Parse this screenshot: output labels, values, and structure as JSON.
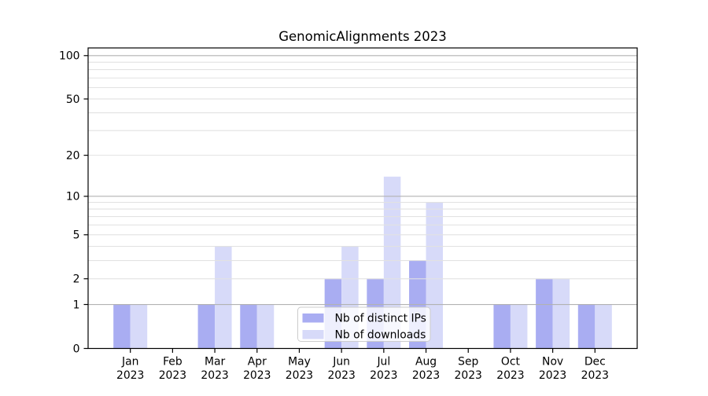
{
  "chart_data": {
    "type": "bar",
    "title": "GenomicAlignments 2023",
    "categories": [
      "Jan",
      "Feb",
      "Mar",
      "Apr",
      "May",
      "Jun",
      "Jul",
      "Aug",
      "Sep",
      "Oct",
      "Nov",
      "Dec"
    ],
    "year_label": "2023",
    "series": [
      {
        "name": "Nb of distinct IPs",
        "color": "#a9adf2",
        "values": [
          1,
          0,
          1,
          1,
          0,
          2,
          2,
          3,
          0,
          1,
          2,
          1
        ]
      },
      {
        "name": "Nb of downloads",
        "color": "#d7daf9",
        "values": [
          1,
          0,
          4,
          1,
          0,
          4,
          14,
          9,
          0,
          1,
          2,
          1
        ]
      }
    ],
    "xlabel": "",
    "ylabel": "",
    "yscale": "log1p",
    "ylim": [
      0,
      113
    ],
    "yticks": [
      0,
      1,
      2,
      5,
      10,
      20,
      50,
      100
    ],
    "major_gridlines": [
      1,
      10,
      100
    ],
    "minor_gridlines": [
      2,
      3,
      4,
      5,
      6,
      7,
      8,
      9,
      20,
      30,
      40,
      50,
      60,
      70,
      80,
      90
    ],
    "grid": true,
    "legend_position": "lower center",
    "colors": {
      "background": "#ffffff",
      "spine": "#000000",
      "text": "#000000",
      "major_grid": "#b2b2b2",
      "minor_grid": "#e2e2e2",
      "legend_border": "#cccccc",
      "legend_fill": "#ffffff"
    }
  }
}
